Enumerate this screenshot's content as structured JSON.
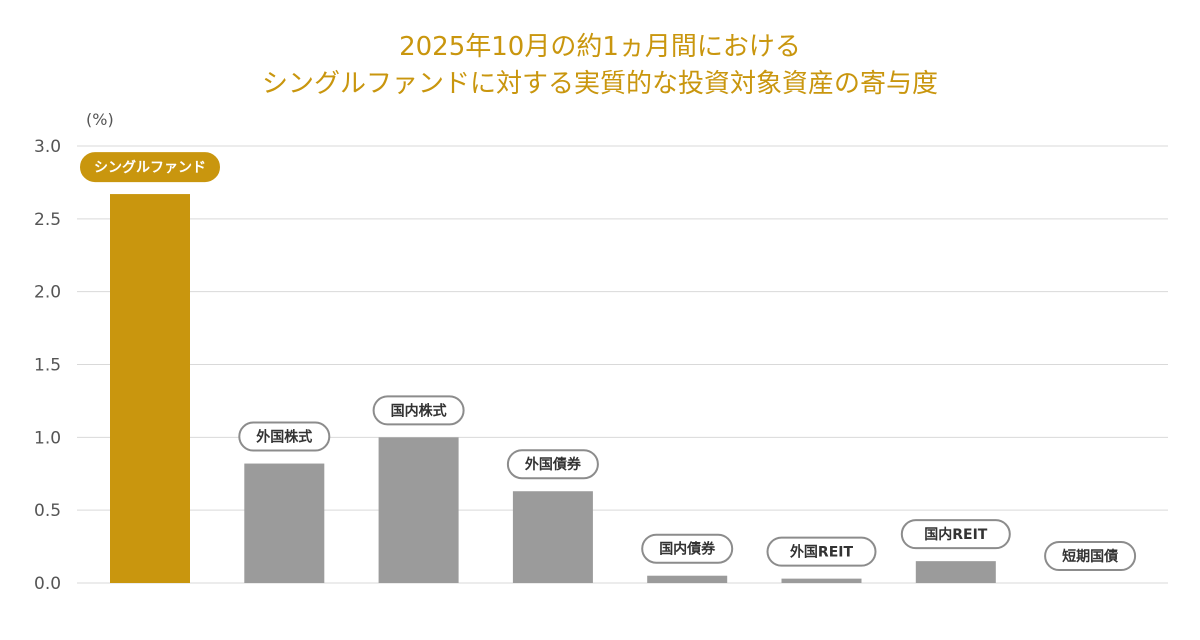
{
  "chart_data": {
    "type": "bar",
    "title_lines": [
      "2025年10月の約1ヵ月間における",
      "シングルファンドに対する実質的な投資対象資産の寄与度"
    ],
    "unit": "(%)",
    "categories": [
      "シングルファンド",
      "外国株式",
      "国内株式",
      "外国債券",
      "国内債券",
      "外国REIT",
      "国内REIT",
      "短期国債"
    ],
    "values": [
      2.67,
      0.82,
      1.0,
      0.63,
      0.05,
      0.03,
      0.15,
      0.0
    ],
    "highlight_index": 0,
    "ylim": [
      0,
      3.0
    ],
    "yticks": [
      "0.0",
      "0.5",
      "1.0",
      "1.5",
      "2.0",
      "2.5",
      "3.0"
    ],
    "grid": true,
    "colors": {
      "highlight": "#c9960e",
      "bar": "#9b9b9b",
      "grid": "#d9d9d9",
      "pill_border": "#8c8c8c",
      "pill_text": "#333333",
      "highlight_pill_text": "#ffffff"
    }
  }
}
